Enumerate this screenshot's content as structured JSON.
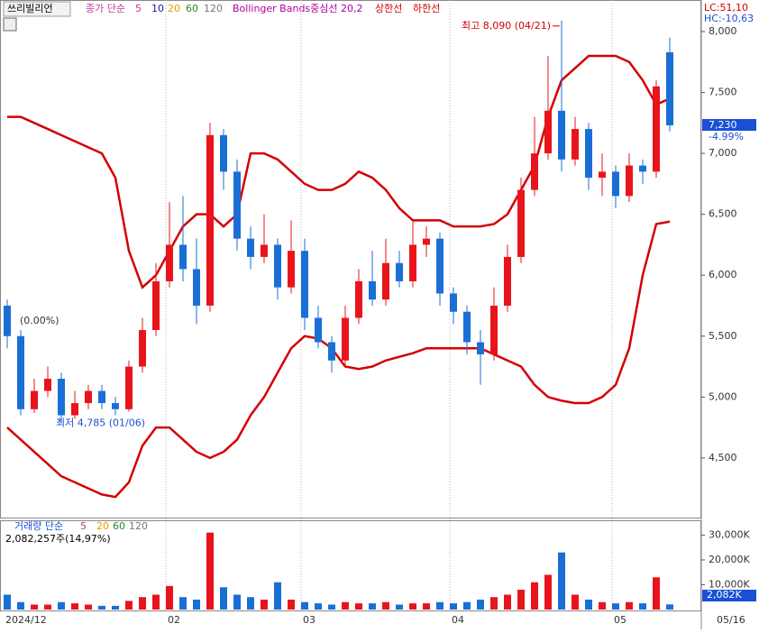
{
  "header": {
    "stock_name": "쓰리빌리언",
    "ma_label": "종가 단순",
    "ma_periods": [
      "5",
      "10",
      "20",
      "60",
      "120"
    ],
    "bb_label": "Bollinger Bands중심선 20,2",
    "upper_label": "상한선",
    "lower_label": "하한선",
    "lc": "LC:51,10",
    "hc": "HC:-10,63"
  },
  "chart_data": [
    {
      "type": "candlestick",
      "categories": [
        "2024/12",
        null,
        null,
        null,
        null,
        null,
        null,
        null,
        null,
        null,
        null,
        null,
        "02",
        null,
        null,
        null,
        null,
        null,
        null,
        null,
        null,
        null,
        "03",
        null,
        null,
        null,
        null,
        null,
        null,
        null,
        null,
        null,
        null,
        "04",
        null,
        null,
        null,
        null,
        null,
        null,
        null,
        null,
        null,
        null,
        null,
        "05",
        null,
        null,
        null,
        null
      ],
      "open": [
        5750,
        5500,
        4900,
        5050,
        5150,
        4850,
        4950,
        5050,
        4950,
        4900,
        5250,
        5550,
        5950,
        6250,
        6050,
        5750,
        7150,
        6850,
        6300,
        6150,
        6250,
        5900,
        6200,
        5650,
        5450,
        5300,
        5650,
        5950,
        5800,
        6100,
        5950,
        6250,
        6300,
        5850,
        5700,
        5450,
        5350,
        5750,
        6150,
        6700,
        7000,
        7350,
        6950,
        7200,
        6800,
        6850,
        6650,
        6900,
        6850,
        7830
      ],
      "high": [
        5800,
        5550,
        5150,
        5250,
        5200,
        5050,
        5100,
        5100,
        5000,
        5300,
        5650,
        6100,
        6600,
        6650,
        6300,
        7250,
        7200,
        6950,
        6400,
        6500,
        6300,
        6450,
        6300,
        5750,
        5500,
        5750,
        6050,
        6200,
        6300,
        6200,
        6450,
        6400,
        6350,
        5900,
        5750,
        5550,
        5900,
        6250,
        6800,
        7300,
        7800,
        8090,
        7300,
        7250,
        7000,
        6900,
        7000,
        6950,
        7600,
        7950
      ],
      "low": [
        5400,
        4850,
        4870,
        5000,
        4785,
        4820,
        4900,
        4900,
        4850,
        4880,
        5200,
        5500,
        5900,
        5950,
        5600,
        5700,
        6700,
        6200,
        6050,
        6100,
        5800,
        5850,
        5550,
        5400,
        5200,
        5250,
        5600,
        5750,
        5750,
        5900,
        5900,
        6150,
        5750,
        5600,
        5350,
        5100,
        5300,
        5700,
        6100,
        6650,
        6950,
        6850,
        6900,
        6700,
        6650,
        6550,
        6600,
        6750,
        6800,
        7180
      ],
      "close": [
        5500,
        4900,
        5050,
        5150,
        4850,
        4950,
        5050,
        4950,
        4900,
        5250,
        5550,
        5950,
        6250,
        6050,
        5750,
        7150,
        6850,
        6300,
        6150,
        6250,
        5900,
        6200,
        5650,
        5450,
        5300,
        5650,
        5950,
        5800,
        6100,
        5950,
        6250,
        6300,
        5850,
        5700,
        5450,
        5350,
        5750,
        6150,
        6700,
        7000,
        7350,
        6950,
        7200,
        6800,
        6850,
        6650,
        6900,
        6850,
        7550,
        7230
      ],
      "bands": [
        {
          "name": "상한선",
          "color": "#d40000",
          "values": [
            7300,
            7300,
            7250,
            7200,
            7150,
            7100,
            7050,
            7000,
            6800,
            6200,
            5900,
            6000,
            6200,
            6400,
            6500,
            6500,
            6400,
            6500,
            7000,
            7000,
            6950,
            6850,
            6750,
            6700,
            6700,
            6750,
            6850,
            6800,
            6700,
            6550,
            6450,
            6450,
            6450,
            6400,
            6400,
            6400,
            6420,
            6500,
            6700,
            6900,
            7300,
            7600,
            7700,
            7800,
            7800,
            7800,
            7750,
            7600,
            7400,
            7450
          ]
        },
        {
          "name": "하한선",
          "color": "#d40000",
          "values": [
            4750,
            4650,
            4550,
            4450,
            4350,
            4300,
            4250,
            4200,
            4180,
            4300,
            4600,
            4750,
            4750,
            4650,
            4550,
            4500,
            4550,
            4650,
            4850,
            5000,
            5200,
            5400,
            5500,
            5480,
            5400,
            5250,
            5230,
            5250,
            5300,
            5330,
            5360,
            5400,
            5400,
            5400,
            5400,
            5400,
            5350,
            5300,
            5250,
            5100,
            5000,
            4970,
            4950,
            4950,
            5000,
            5100,
            5400,
            6000,
            6420,
            6440
          ]
        }
      ],
      "up_color": "#e8141c",
      "down_color": "#1a6fd6",
      "ylim": [
        4003,
        8259
      ],
      "yticks": [
        {
          "value": 4500,
          "label": "4,500"
        },
        {
          "value": 5000,
          "label": "5,000"
        },
        {
          "value": 5500,
          "label": "5,500"
        },
        {
          "value": 6000,
          "label": "6,000"
        },
        {
          "value": 6500,
          "label": "6,500"
        },
        {
          "value": 7000,
          "label": "7,000"
        },
        {
          "value": 7500,
          "label": "7,500"
        },
        {
          "value": 8000,
          "label": "8,000"
        }
      ],
      "high_label": "최고 8,090 (04/21)",
      "low_label": "최저 4,785 (01/06)",
      "start_label": "(0.00%)",
      "last_price_label": "7,230",
      "last_change_label": "-4.99%",
      "last_date_label": "05/16"
    },
    {
      "type": "bar",
      "title": "거래량 단순",
      "ma_periods": [
        "5",
        "20",
        "60",
        "120"
      ],
      "subtitle": "2,082,257주(14,97%)",
      "values": [
        6000,
        3000,
        2000,
        2000,
        3000,
        2500,
        2000,
        1500,
        1500,
        3500,
        5000,
        6000,
        9500,
        5000,
        4000,
        31000,
        9000,
        6000,
        5000,
        4000,
        11000,
        4000,
        3000,
        2500,
        2000,
        3000,
        2500,
        2500,
        3000,
        2000,
        2500,
        2500,
        3000,
        2500,
        3000,
        4000,
        5000,
        6000,
        8000,
        11000,
        14000,
        23000,
        6000,
        4000,
        3000,
        2500,
        3000,
        2500,
        13000,
        2082
      ],
      "last_value_label": "2,082K",
      "ylim": [
        0,
        35600
      ],
      "yticks": [
        {
          "value": 10000,
          "label": "10,000K"
        },
        {
          "value": 20000,
          "label": "20,000K"
        },
        {
          "value": 30000,
          "label": "30,000K"
        }
      ]
    }
  ]
}
